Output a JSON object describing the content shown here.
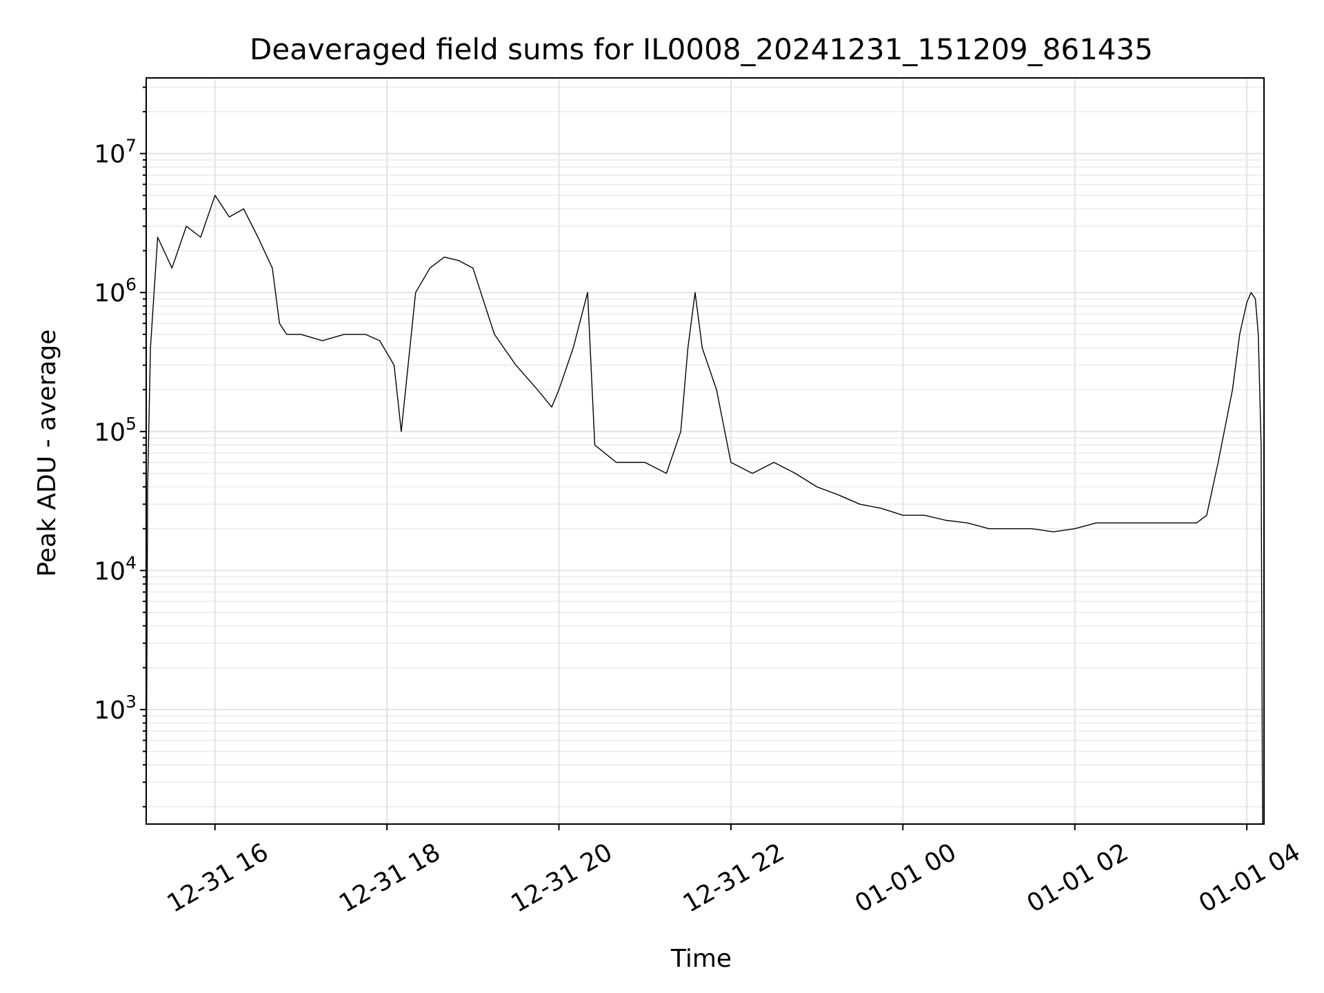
{
  "chart_data": {
    "type": "line",
    "title": "Deaveraged field sums for IL0008_20241231_151209_861435",
    "xlabel": "Time",
    "ylabel": "Peak ADU - average",
    "x_scale": "time",
    "y_scale": "log",
    "xlim": [
      "2024-12-31T15:12",
      "2025-01-01T04:12"
    ],
    "ylim": [
      150,
      35000000
    ],
    "grid": true,
    "x_tick_values": [
      "2024-12-31T16:00",
      "2024-12-31T18:00",
      "2024-12-31T20:00",
      "2024-12-31T22:00",
      "2025-01-01T00:00",
      "2025-01-01T02:00",
      "2025-01-01T04:00"
    ],
    "x_tick_labels": [
      "12-31 16",
      "12-31 18",
      "12-31 20",
      "12-31 22",
      "01-01 00",
      "01-01 02",
      "01-01 04"
    ],
    "y_ticks": [
      {
        "base": "10",
        "exp": "3",
        "value": 1000
      },
      {
        "base": "10",
        "exp": "4",
        "value": 10000
      },
      {
        "base": "10",
        "exp": "5",
        "value": 100000
      },
      {
        "base": "10",
        "exp": "6",
        "value": 1000000
      },
      {
        "base": "10",
        "exp": "7",
        "value": 10000000
      }
    ],
    "series": [
      {
        "color": "#000000",
        "x": [
          "2024-12-31T15:12",
          "2024-12-31T15:13",
          "2024-12-31T15:15",
          "2024-12-31T15:20",
          "2024-12-31T15:30",
          "2024-12-31T15:40",
          "2024-12-31T15:50",
          "2024-12-31T16:00",
          "2024-12-31T16:10",
          "2024-12-31T16:20",
          "2024-12-31T16:30",
          "2024-12-31T16:40",
          "2024-12-31T16:45",
          "2024-12-31T16:50",
          "2024-12-31T17:00",
          "2024-12-31T17:15",
          "2024-12-31T17:30",
          "2024-12-31T17:45",
          "2024-12-31T17:55",
          "2024-12-31T18:05",
          "2024-12-31T18:10",
          "2024-12-31T18:20",
          "2024-12-31T18:30",
          "2024-12-31T18:40",
          "2024-12-31T18:50",
          "2024-12-31T19:00",
          "2024-12-31T19:15",
          "2024-12-31T19:30",
          "2024-12-31T19:45",
          "2024-12-31T19:55",
          "2024-12-31T20:00",
          "2024-12-31T20:10",
          "2024-12-31T20:20",
          "2024-12-31T20:25",
          "2024-12-31T20:40",
          "2024-12-31T21:00",
          "2024-12-31T21:15",
          "2024-12-31T21:25",
          "2024-12-31T21:30",
          "2024-12-31T21:35",
          "2024-12-31T21:40",
          "2024-12-31T21:50",
          "2024-12-31T22:00",
          "2024-12-31T22:15",
          "2024-12-31T22:30",
          "2024-12-31T22:45",
          "2024-12-31T23:00",
          "2024-12-31T23:15",
          "2024-12-31T23:30",
          "2024-12-31T23:45",
          "2025-01-01T00:00",
          "2025-01-01T00:15",
          "2025-01-01T00:30",
          "2025-01-01T00:45",
          "2025-01-01T01:00",
          "2025-01-01T01:15",
          "2025-01-01T01:30",
          "2025-01-01T01:45",
          "2025-01-01T02:00",
          "2025-01-01T02:15",
          "2025-01-01T02:30",
          "2025-01-01T02:45",
          "2025-01-01T03:00",
          "2025-01-01T03:15",
          "2025-01-01T03:25",
          "2025-01-01T03:32",
          "2025-01-01T03:40",
          "2025-01-01T03:50",
          "2025-01-01T03:55",
          "2025-01-01T04:00",
          "2025-01-01T04:03",
          "2025-01-01T04:06",
          "2025-01-01T04:08",
          "2025-01-01T04:10",
          "2025-01-01T04:11"
        ],
        "y": [
          150,
          40000,
          400000,
          2500000,
          1500000,
          3000000,
          2500000,
          5000000,
          3500000,
          4000000,
          2500000,
          1500000,
          600000,
          500000,
          500000,
          450000,
          500000,
          500000,
          450000,
          300000,
          100000,
          1000000,
          1500000,
          1800000,
          1700000,
          1500000,
          500000,
          300000,
          200000,
          150000,
          200000,
          400000,
          1000000,
          80000,
          60000,
          60000,
          50000,
          100000,
          400000,
          1000000,
          400000,
          200000,
          60000,
          50000,
          60000,
          50000,
          40000,
          35000,
          30000,
          28000,
          25000,
          25000,
          23000,
          22000,
          20000,
          20000,
          20000,
          19000,
          20000,
          22000,
          22000,
          22000,
          22000,
          22000,
          22000,
          25000,
          60000,
          200000,
          500000,
          850000,
          1000000,
          900000,
          500000,
          80000,
          150
        ]
      }
    ]
  }
}
